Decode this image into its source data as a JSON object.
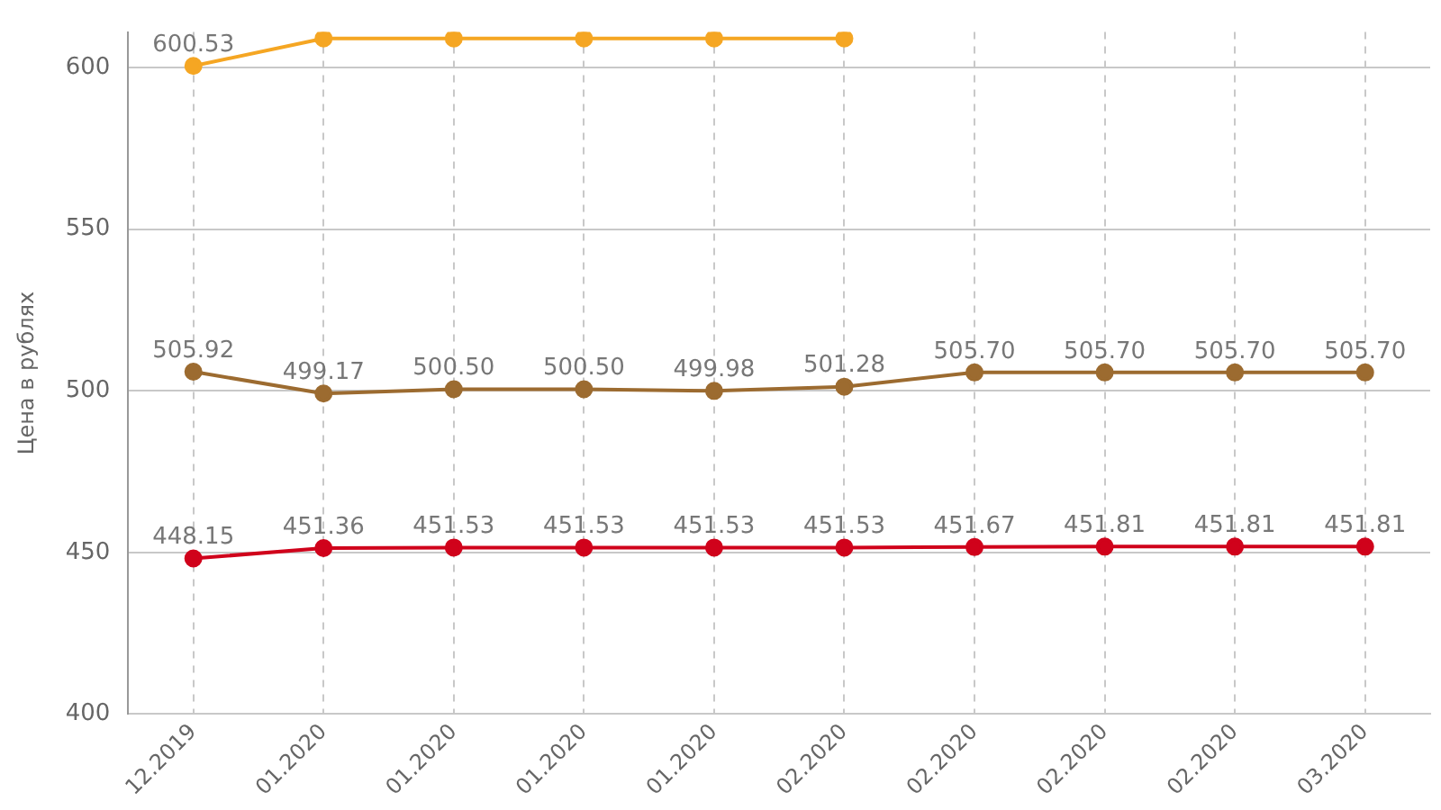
{
  "chart_data": {
    "type": "line",
    "ylabel": "Цена в рублях",
    "categories": [
      "12.2019",
      "01.2020",
      "01.2020",
      "01.2020",
      "01.2020",
      "02.2020",
      "02.2020",
      "02.2020",
      "02.2020",
      "03.2020"
    ],
    "series": [
      {
        "color": "#f5a623",
        "values": [
          600.53,
          609,
          609,
          609,
          609,
          609,
          null,
          null,
          null,
          null
        ],
        "value_labels": [
          "600.53",
          null,
          null,
          null,
          null,
          null,
          null,
          null,
          null,
          null
        ]
      },
      {
        "color": "#9c6b30",
        "values": [
          505.92,
          499.17,
          500.5,
          500.5,
          499.98,
          501.28,
          505.7,
          505.7,
          505.7,
          505.7
        ],
        "value_labels": [
          "505.92",
          "499.17",
          "500.50",
          "500.50",
          "499.98",
          "501.28",
          "505.70",
          "505.70",
          "505.70",
          "505.70"
        ]
      },
      {
        "color": "#d0021b",
        "values": [
          448.15,
          451.36,
          451.53,
          451.53,
          451.53,
          451.53,
          451.67,
          451.81,
          451.81,
          451.81
        ],
        "value_labels": [
          "448.15",
          "451.36",
          "451.53",
          "451.53",
          "451.53",
          "451.53",
          "451.67",
          "451.81",
          "451.81",
          "451.81"
        ]
      }
    ],
    "ylim": [
      400,
      611
    ],
    "yticks": [
      400,
      450,
      500,
      550,
      600
    ],
    "grid": true,
    "marker": "circle",
    "line_style": "solid"
  }
}
